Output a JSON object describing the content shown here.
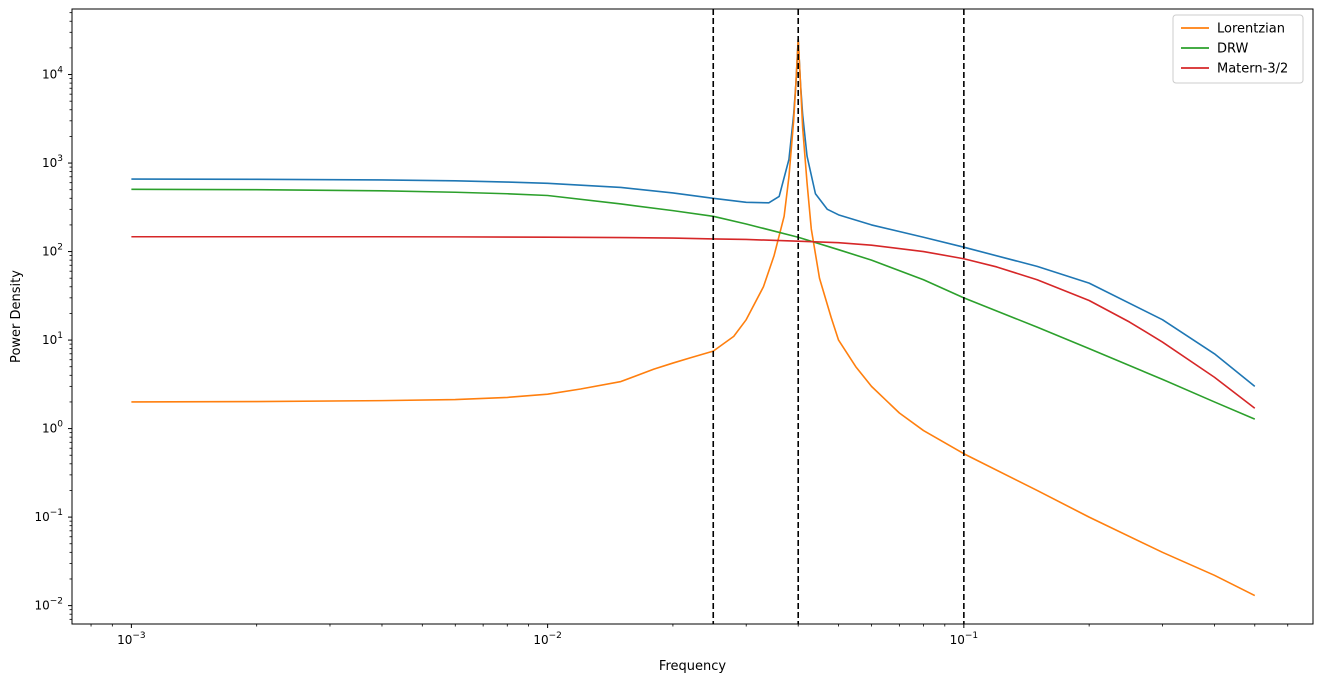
{
  "chart_data": {
    "type": "line",
    "xlabel": "Frequency",
    "ylabel": "Power Density",
    "xscale": "log",
    "yscale": "log",
    "xlim": [
      0.00072,
      0.69
    ],
    "ylim": [
      0.0062,
      55000
    ],
    "x_ticks": [
      {
        "value": 0.001,
        "base": "10",
        "exp": "−3"
      },
      {
        "value": 0.01,
        "base": "10",
        "exp": "−2"
      },
      {
        "value": 0.1,
        "base": "10",
        "exp": "−1"
      }
    ],
    "y_ticks": [
      {
        "value": 0.01,
        "base": "10",
        "exp": "−2"
      },
      {
        "value": 0.1,
        "base": "10",
        "exp": "−1"
      },
      {
        "value": 1,
        "base": "10",
        "exp": "0"
      },
      {
        "value": 10,
        "base": "10",
        "exp": "1"
      },
      {
        "value": 100,
        "base": "10",
        "exp": "2"
      },
      {
        "value": 1000,
        "base": "10",
        "exp": "3"
      },
      {
        "value": 10000,
        "base": "10",
        "exp": "4"
      }
    ],
    "vlines": [
      0.025,
      0.04,
      0.1
    ],
    "legend_position": "upper right",
    "grid": false,
    "series": [
      {
        "color": "#1f77b4",
        "in_legend": false,
        "x": [
          0.001,
          0.002,
          0.004,
          0.006,
          0.008,
          0.01,
          0.015,
          0.02,
          0.025,
          0.03,
          0.034,
          0.036,
          0.038,
          0.039,
          0.0395,
          0.04,
          0.0405,
          0.041,
          0.042,
          0.044,
          0.047,
          0.05,
          0.06,
          0.08,
          0.1,
          0.15,
          0.2,
          0.3,
          0.4,
          0.5
        ],
        "y": [
          660,
          655,
          645,
          630,
          610,
          590,
          530,
          460,
          400,
          360,
          355,
          420,
          1100,
          3500,
          8000,
          25000,
          8000,
          3500,
          1200,
          450,
          300,
          260,
          200,
          145,
          112,
          68,
          44,
          17,
          7,
          3
        ]
      },
      {
        "name": "Lorentzian",
        "color": "#ff7f0e",
        "in_legend": true,
        "x": [
          0.001,
          0.002,
          0.004,
          0.006,
          0.008,
          0.01,
          0.012,
          0.015,
          0.018,
          0.02,
          0.022,
          0.025,
          0.028,
          0.03,
          0.033,
          0.035,
          0.037,
          0.038,
          0.039,
          0.0395,
          0.04,
          0.0405,
          0.041,
          0.042,
          0.043,
          0.045,
          0.048,
          0.05,
          0.055,
          0.06,
          0.07,
          0.08,
          0.1,
          0.15,
          0.2,
          0.3,
          0.4,
          0.5
        ],
        "y": [
          2.0,
          2.02,
          2.07,
          2.13,
          2.25,
          2.45,
          2.8,
          3.4,
          4.7,
          5.5,
          6.3,
          7.5,
          11,
          17,
          40,
          90,
          250,
          700,
          3000,
          8000,
          25000,
          8000,
          2500,
          600,
          180,
          50,
          18,
          10,
          5,
          3.0,
          1.5,
          0.95,
          0.52,
          0.2,
          0.1,
          0.04,
          0.022,
          0.013
        ]
      },
      {
        "name": "DRW",
        "color": "#2ca02c",
        "in_legend": true,
        "x": [
          0.001,
          0.002,
          0.004,
          0.006,
          0.008,
          0.01,
          0.015,
          0.02,
          0.025,
          0.03,
          0.04,
          0.05,
          0.06,
          0.08,
          0.1,
          0.15,
          0.2,
          0.3,
          0.4,
          0.5
        ],
        "y": [
          505,
          500,
          485,
          468,
          450,
          430,
          345,
          290,
          250,
          205,
          145,
          105,
          80,
          48,
          30,
          14,
          8.0,
          3.6,
          2.0,
          1.28
        ]
      },
      {
        "name": "Matern-3/2",
        "color": "#d62728",
        "in_legend": true,
        "x": [
          0.001,
          0.002,
          0.004,
          0.006,
          0.008,
          0.01,
          0.015,
          0.02,
          0.025,
          0.03,
          0.04,
          0.05,
          0.06,
          0.08,
          0.1,
          0.12,
          0.15,
          0.2,
          0.25,
          0.3,
          0.4,
          0.5
        ],
        "y": [
          147,
          147,
          147,
          146.5,
          146,
          145.5,
          144,
          142,
          139,
          137,
          131,
          126,
          118,
          100,
          83,
          67,
          48,
          28,
          16,
          9.5,
          3.8,
          1.7
        ]
      }
    ]
  }
}
